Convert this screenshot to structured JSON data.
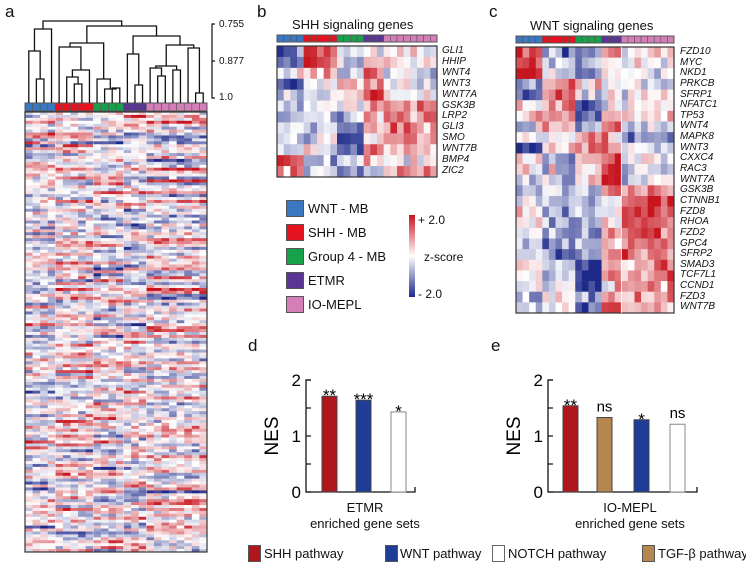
{
  "panels": {
    "a": "a",
    "b": "b",
    "c": "c",
    "d": "d",
    "e": "e"
  },
  "groups": [
    {
      "name": "WNT - MB",
      "color": "#3a78c2",
      "count": 4
    },
    {
      "name": "SHH - MB",
      "color": "#e5131f",
      "count": 5
    },
    {
      "name": "Group 4 - MB",
      "color": "#17a14a",
      "count": 4
    },
    {
      "name": "ETMR",
      "color": "#5b3594",
      "count": 3
    },
    {
      "name": "IO-MEPL",
      "color": "#d57fb9",
      "count": 8
    }
  ],
  "dendrogram_scale": [
    "0.755",
    "0.877",
    "1.0"
  ],
  "zscore": {
    "label": "z-score",
    "max": "+ 2.0",
    "min": "- 2.0",
    "low_color": "#1e2a8a",
    "high_color": "#c8141e"
  },
  "shh_heatmap": {
    "title": "SHH signaling genes",
    "genes": [
      "GLI1",
      "HHIP",
      "WNT4",
      "WNT3",
      "WNT7A",
      "GSK3B",
      "LRP2",
      "GLI3",
      "SMO",
      "WNT7B",
      "BMP4",
      "ZIC2"
    ]
  },
  "wnt_heatmap": {
    "title": "WNT signaling genes",
    "genes": [
      "FZD10",
      "MYC",
      "NKD1",
      "PRKCB",
      "SFRP1",
      "NFATC1",
      "TP53",
      "WNT4",
      "MAPK8",
      "WNT3",
      "CXXC4",
      "RAC3",
      "WNT7A",
      "GSK3B",
      "CTNNB1",
      "FZD8",
      "RHOA",
      "FZD2",
      "GPC4",
      "SFRP2",
      "SMAD3",
      "TCF7L1",
      "CCND1",
      "FZD3",
      "WNT7B"
    ]
  },
  "chart_data": [
    {
      "type": "bar",
      "ylabel": "NES",
      "xlabel": [
        "ETMR",
        "enriched gene sets"
      ],
      "ylim": [
        0,
        2
      ],
      "yticks": [
        "0",
        "1",
        "2"
      ],
      "categories": [
        "SHH pathway",
        "WNT pathway",
        "NOTCH pathway"
      ],
      "values": [
        1.71,
        1.64,
        1.43
      ],
      "significance": [
        "**",
        "***",
        "*"
      ],
      "colors": [
        "#b0171c",
        "#1f3d96",
        "#ffffff"
      ]
    },
    {
      "type": "bar",
      "ylabel": "NES",
      "xlabel": [
        "IO-MEPL",
        "enriched gene sets"
      ],
      "ylim": [
        0,
        2
      ],
      "yticks": [
        "0",
        "1",
        "2"
      ],
      "categories": [
        "SHH pathway",
        "TGF-β pathway",
        "WNT pathway",
        "NOTCH pathway"
      ],
      "values": [
        1.54,
        1.33,
        1.29,
        1.21
      ],
      "significance": [
        "**",
        "ns",
        "*",
        "ns"
      ],
      "colors": [
        "#b0171c",
        "#b5864e",
        "#1f3d96",
        "#ffffff"
      ]
    }
  ],
  "pathway_legend": [
    {
      "label": "SHH pathway",
      "color": "#b0171c"
    },
    {
      "label": "WNT pathway",
      "color": "#1f3d96"
    },
    {
      "label": "NOTCH pathway",
      "color": "#ffffff"
    },
    {
      "label": "TGF-β pathway",
      "color": "#b5864e"
    }
  ]
}
